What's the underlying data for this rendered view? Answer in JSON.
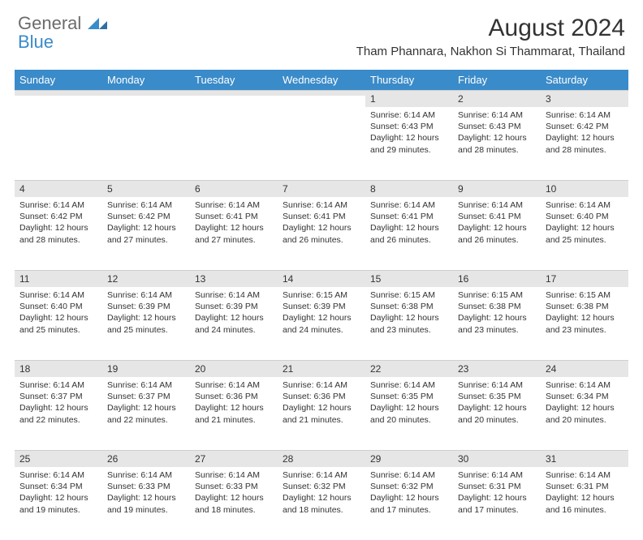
{
  "logo": {
    "word1": "General",
    "word2": "Blue"
  },
  "title": "August 2024",
  "location": "Tham Phannara, Nakhon Si Thammarat, Thailand",
  "dayHeaders": [
    "Sunday",
    "Monday",
    "Tuesday",
    "Wednesday",
    "Thursday",
    "Friday",
    "Saturday"
  ],
  "colors": {
    "headerBg": "#3a8bc9",
    "headerText": "#ffffff",
    "dayNumBg": "#e6e6e6",
    "bodyText": "#333333",
    "logoGray": "#6b6b6b",
    "logoBlue": "#3a8bc9"
  },
  "weeks": [
    [
      {
        "n": "",
        "sunrise": "",
        "sunset": "",
        "daylight": ""
      },
      {
        "n": "",
        "sunrise": "",
        "sunset": "",
        "daylight": ""
      },
      {
        "n": "",
        "sunrise": "",
        "sunset": "",
        "daylight": ""
      },
      {
        "n": "",
        "sunrise": "",
        "sunset": "",
        "daylight": ""
      },
      {
        "n": "1",
        "sunrise": "Sunrise: 6:14 AM",
        "sunset": "Sunset: 6:43 PM",
        "daylight": "Daylight: 12 hours and 29 minutes."
      },
      {
        "n": "2",
        "sunrise": "Sunrise: 6:14 AM",
        "sunset": "Sunset: 6:43 PM",
        "daylight": "Daylight: 12 hours and 28 minutes."
      },
      {
        "n": "3",
        "sunrise": "Sunrise: 6:14 AM",
        "sunset": "Sunset: 6:42 PM",
        "daylight": "Daylight: 12 hours and 28 minutes."
      }
    ],
    [
      {
        "n": "4",
        "sunrise": "Sunrise: 6:14 AM",
        "sunset": "Sunset: 6:42 PM",
        "daylight": "Daylight: 12 hours and 28 minutes."
      },
      {
        "n": "5",
        "sunrise": "Sunrise: 6:14 AM",
        "sunset": "Sunset: 6:42 PM",
        "daylight": "Daylight: 12 hours and 27 minutes."
      },
      {
        "n": "6",
        "sunrise": "Sunrise: 6:14 AM",
        "sunset": "Sunset: 6:41 PM",
        "daylight": "Daylight: 12 hours and 27 minutes."
      },
      {
        "n": "7",
        "sunrise": "Sunrise: 6:14 AM",
        "sunset": "Sunset: 6:41 PM",
        "daylight": "Daylight: 12 hours and 26 minutes."
      },
      {
        "n": "8",
        "sunrise": "Sunrise: 6:14 AM",
        "sunset": "Sunset: 6:41 PM",
        "daylight": "Daylight: 12 hours and 26 minutes."
      },
      {
        "n": "9",
        "sunrise": "Sunrise: 6:14 AM",
        "sunset": "Sunset: 6:41 PM",
        "daylight": "Daylight: 12 hours and 26 minutes."
      },
      {
        "n": "10",
        "sunrise": "Sunrise: 6:14 AM",
        "sunset": "Sunset: 6:40 PM",
        "daylight": "Daylight: 12 hours and 25 minutes."
      }
    ],
    [
      {
        "n": "11",
        "sunrise": "Sunrise: 6:14 AM",
        "sunset": "Sunset: 6:40 PM",
        "daylight": "Daylight: 12 hours and 25 minutes."
      },
      {
        "n": "12",
        "sunrise": "Sunrise: 6:14 AM",
        "sunset": "Sunset: 6:39 PM",
        "daylight": "Daylight: 12 hours and 25 minutes."
      },
      {
        "n": "13",
        "sunrise": "Sunrise: 6:14 AM",
        "sunset": "Sunset: 6:39 PM",
        "daylight": "Daylight: 12 hours and 24 minutes."
      },
      {
        "n": "14",
        "sunrise": "Sunrise: 6:15 AM",
        "sunset": "Sunset: 6:39 PM",
        "daylight": "Daylight: 12 hours and 24 minutes."
      },
      {
        "n": "15",
        "sunrise": "Sunrise: 6:15 AM",
        "sunset": "Sunset: 6:38 PM",
        "daylight": "Daylight: 12 hours and 23 minutes."
      },
      {
        "n": "16",
        "sunrise": "Sunrise: 6:15 AM",
        "sunset": "Sunset: 6:38 PM",
        "daylight": "Daylight: 12 hours and 23 minutes."
      },
      {
        "n": "17",
        "sunrise": "Sunrise: 6:15 AM",
        "sunset": "Sunset: 6:38 PM",
        "daylight": "Daylight: 12 hours and 23 minutes."
      }
    ],
    [
      {
        "n": "18",
        "sunrise": "Sunrise: 6:14 AM",
        "sunset": "Sunset: 6:37 PM",
        "daylight": "Daylight: 12 hours and 22 minutes."
      },
      {
        "n": "19",
        "sunrise": "Sunrise: 6:14 AM",
        "sunset": "Sunset: 6:37 PM",
        "daylight": "Daylight: 12 hours and 22 minutes."
      },
      {
        "n": "20",
        "sunrise": "Sunrise: 6:14 AM",
        "sunset": "Sunset: 6:36 PM",
        "daylight": "Daylight: 12 hours and 21 minutes."
      },
      {
        "n": "21",
        "sunrise": "Sunrise: 6:14 AM",
        "sunset": "Sunset: 6:36 PM",
        "daylight": "Daylight: 12 hours and 21 minutes."
      },
      {
        "n": "22",
        "sunrise": "Sunrise: 6:14 AM",
        "sunset": "Sunset: 6:35 PM",
        "daylight": "Daylight: 12 hours and 20 minutes."
      },
      {
        "n": "23",
        "sunrise": "Sunrise: 6:14 AM",
        "sunset": "Sunset: 6:35 PM",
        "daylight": "Daylight: 12 hours and 20 minutes."
      },
      {
        "n": "24",
        "sunrise": "Sunrise: 6:14 AM",
        "sunset": "Sunset: 6:34 PM",
        "daylight": "Daylight: 12 hours and 20 minutes."
      }
    ],
    [
      {
        "n": "25",
        "sunrise": "Sunrise: 6:14 AM",
        "sunset": "Sunset: 6:34 PM",
        "daylight": "Daylight: 12 hours and 19 minutes."
      },
      {
        "n": "26",
        "sunrise": "Sunrise: 6:14 AM",
        "sunset": "Sunset: 6:33 PM",
        "daylight": "Daylight: 12 hours and 19 minutes."
      },
      {
        "n": "27",
        "sunrise": "Sunrise: 6:14 AM",
        "sunset": "Sunset: 6:33 PM",
        "daylight": "Daylight: 12 hours and 18 minutes."
      },
      {
        "n": "28",
        "sunrise": "Sunrise: 6:14 AM",
        "sunset": "Sunset: 6:32 PM",
        "daylight": "Daylight: 12 hours and 18 minutes."
      },
      {
        "n": "29",
        "sunrise": "Sunrise: 6:14 AM",
        "sunset": "Sunset: 6:32 PM",
        "daylight": "Daylight: 12 hours and 17 minutes."
      },
      {
        "n": "30",
        "sunrise": "Sunrise: 6:14 AM",
        "sunset": "Sunset: 6:31 PM",
        "daylight": "Daylight: 12 hours and 17 minutes."
      },
      {
        "n": "31",
        "sunrise": "Sunrise: 6:14 AM",
        "sunset": "Sunset: 6:31 PM",
        "daylight": "Daylight: 12 hours and 16 minutes."
      }
    ]
  ]
}
